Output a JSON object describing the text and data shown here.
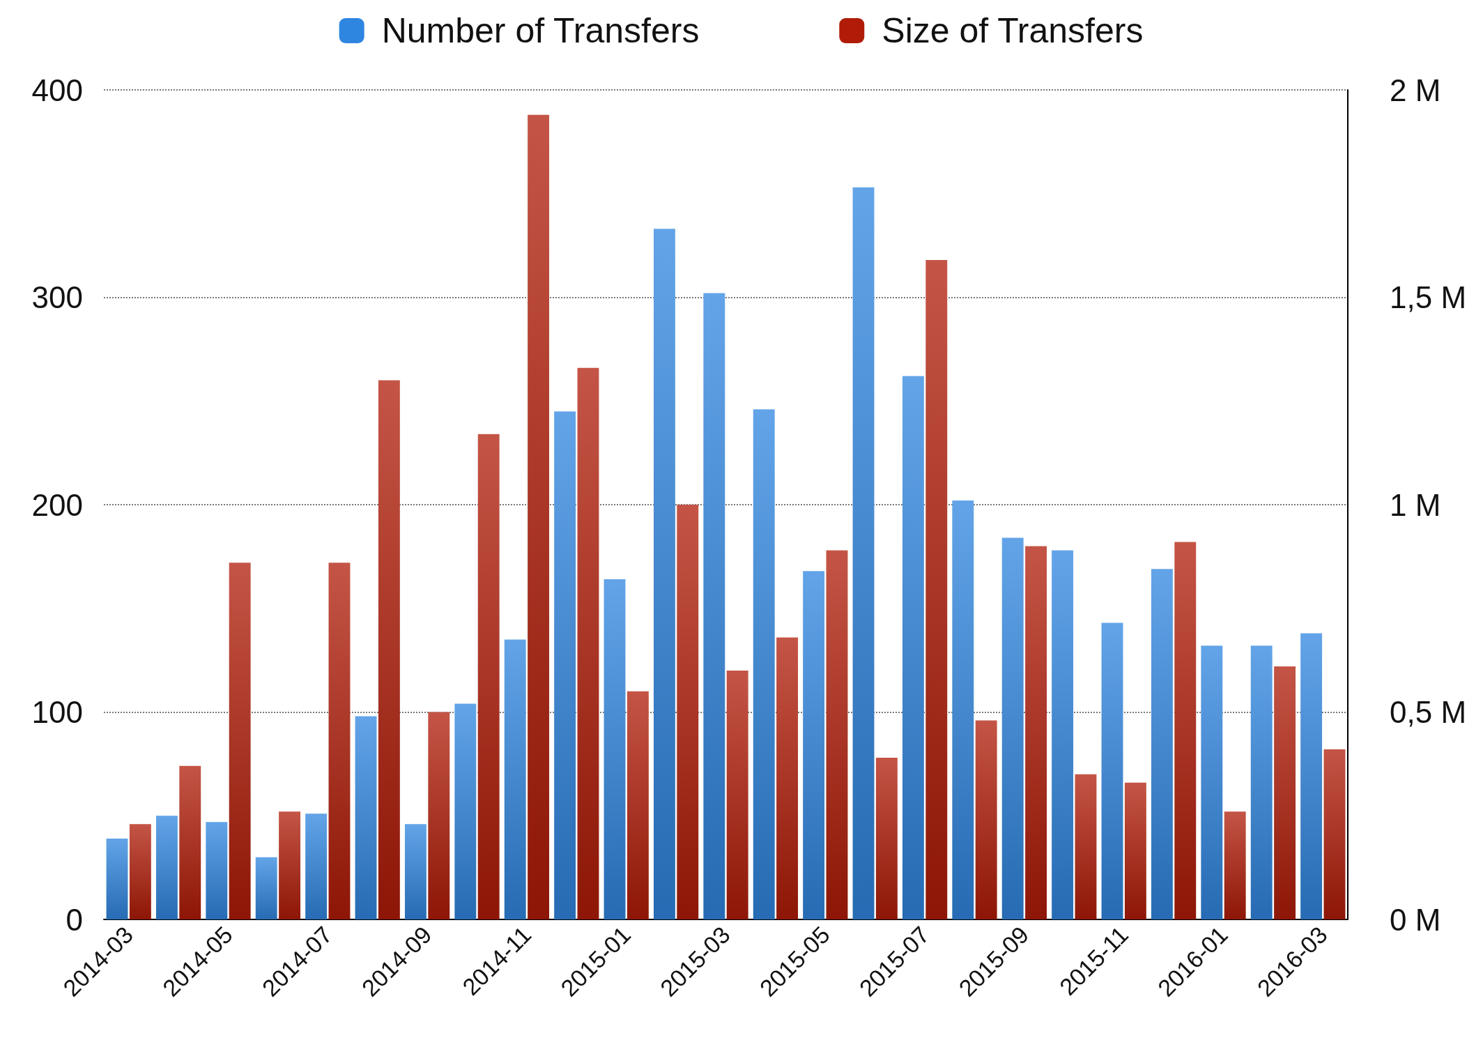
{
  "chart_data": {
    "type": "bar",
    "categories": [
      "2014-03",
      null,
      "2014-05",
      null,
      "2014-07",
      null,
      "2014-09",
      null,
      "2014-11",
      null,
      "2015-01",
      null,
      "2015-03",
      null,
      "2015-05",
      null,
      "2015-07",
      null,
      "2015-09",
      null,
      "2015-11",
      null,
      "2016-01",
      null,
      "2016-03"
    ],
    "series": [
      {
        "name": "Number of Transfers",
        "color": "#2f86e0",
        "values": [
          39,
          50,
          47,
          30,
          51,
          98,
          46,
          104,
          135,
          245,
          164,
          333,
          302,
          246,
          168,
          353,
          262,
          202,
          184,
          178,
          143,
          169,
          132,
          132,
          138
        ]
      },
      {
        "name": "Size of Transfers",
        "color": "#b01c08",
        "axis": "y2",
        "values": [
          0.23,
          0.37,
          0.86,
          0.26,
          0.86,
          1.3,
          0.5,
          1.17,
          1.94,
          1.33,
          0.55,
          1.0,
          0.6,
          0.68,
          0.89,
          0.39,
          1.59,
          0.48,
          0.9,
          0.35,
          0.33,
          0.91,
          0.26,
          0.61,
          0.41
        ]
      }
    ],
    "ylim": [
      0,
      400
    ],
    "yticks": [
      0,
      100,
      200,
      300,
      400
    ],
    "y2lim": [
      0,
      2
    ],
    "y2ticks": [
      {
        "value": 0,
        "label": "0 M"
      },
      {
        "value": 0.5,
        "label": "0,5 M"
      },
      {
        "value": 1,
        "label": "1 M"
      },
      {
        "value": 1.5,
        "label": "1,5 M"
      },
      {
        "value": 2,
        "label": "2 M"
      }
    ],
    "grid": "y",
    "legend": "top"
  }
}
